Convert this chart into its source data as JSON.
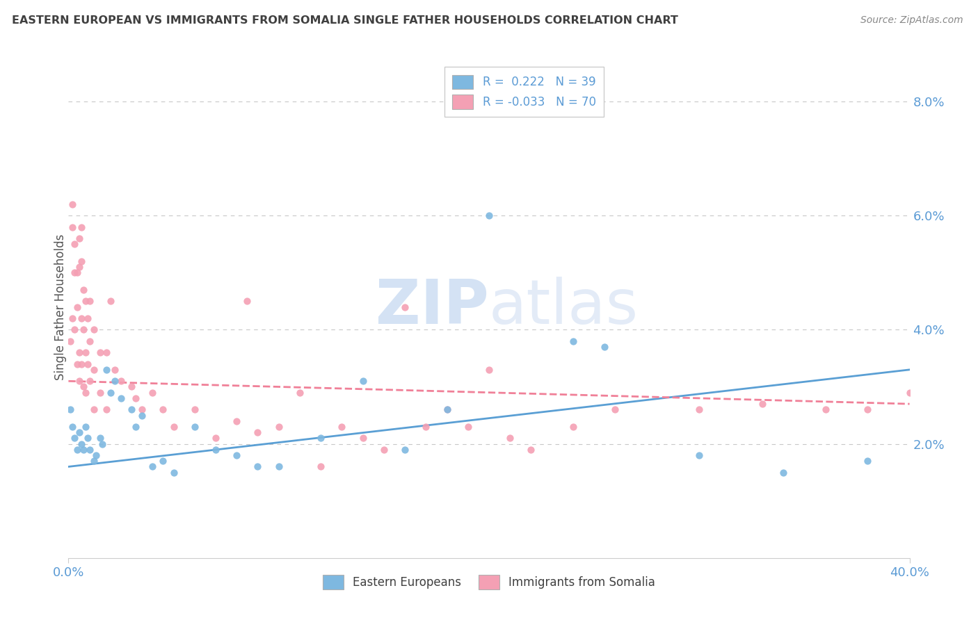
{
  "title": "EASTERN EUROPEAN VS IMMIGRANTS FROM SOMALIA SINGLE FATHER HOUSEHOLDS CORRELATION CHART",
  "source": "Source: ZipAtlas.com",
  "ylabel": "Single Father Households",
  "ytick_labels": [
    "2.0%",
    "4.0%",
    "6.0%",
    "8.0%"
  ],
  "ytick_values": [
    0.02,
    0.04,
    0.06,
    0.08
  ],
  "xlim": [
    0.0,
    0.4
  ],
  "ylim": [
    0.0,
    0.088
  ],
  "legend_line1": "R =  0.222   N = 39",
  "legend_line2": "R = -0.033   N = 70",
  "legend_labels": [
    "Eastern Europeans",
    "Immigrants from Somalia"
  ],
  "blue_color": "#7eb8e0",
  "pink_color": "#f4a0b4",
  "blue_line_color": "#5a9fd4",
  "pink_line_color": "#f08098",
  "watermark": "ZIPatlas",
  "blue_scatter": [
    [
      0.001,
      0.026
    ],
    [
      0.002,
      0.023
    ],
    [
      0.003,
      0.021
    ],
    [
      0.004,
      0.019
    ],
    [
      0.005,
      0.022
    ],
    [
      0.006,
      0.02
    ],
    [
      0.007,
      0.019
    ],
    [
      0.008,
      0.023
    ],
    [
      0.009,
      0.021
    ],
    [
      0.01,
      0.019
    ],
    [
      0.012,
      0.017
    ],
    [
      0.013,
      0.018
    ],
    [
      0.015,
      0.021
    ],
    [
      0.016,
      0.02
    ],
    [
      0.018,
      0.033
    ],
    [
      0.02,
      0.029
    ],
    [
      0.022,
      0.031
    ],
    [
      0.025,
      0.028
    ],
    [
      0.03,
      0.026
    ],
    [
      0.032,
      0.023
    ],
    [
      0.035,
      0.025
    ],
    [
      0.04,
      0.016
    ],
    [
      0.045,
      0.017
    ],
    [
      0.05,
      0.015
    ],
    [
      0.06,
      0.023
    ],
    [
      0.07,
      0.019
    ],
    [
      0.08,
      0.018
    ],
    [
      0.09,
      0.016
    ],
    [
      0.1,
      0.016
    ],
    [
      0.12,
      0.021
    ],
    [
      0.14,
      0.031
    ],
    [
      0.16,
      0.019
    ],
    [
      0.18,
      0.026
    ],
    [
      0.2,
      0.06
    ],
    [
      0.24,
      0.038
    ],
    [
      0.255,
      0.037
    ],
    [
      0.3,
      0.018
    ],
    [
      0.34,
      0.015
    ],
    [
      0.38,
      0.017
    ]
  ],
  "pink_scatter": [
    [
      0.001,
      0.038
    ],
    [
      0.002,
      0.042
    ],
    [
      0.002,
      0.058
    ],
    [
      0.002,
      0.062
    ],
    [
      0.003,
      0.055
    ],
    [
      0.003,
      0.05
    ],
    [
      0.003,
      0.04
    ],
    [
      0.004,
      0.05
    ],
    [
      0.004,
      0.044
    ],
    [
      0.004,
      0.034
    ],
    [
      0.005,
      0.056
    ],
    [
      0.005,
      0.051
    ],
    [
      0.005,
      0.036
    ],
    [
      0.005,
      0.031
    ],
    [
      0.006,
      0.058
    ],
    [
      0.006,
      0.052
    ],
    [
      0.006,
      0.042
    ],
    [
      0.006,
      0.034
    ],
    [
      0.007,
      0.047
    ],
    [
      0.007,
      0.04
    ],
    [
      0.007,
      0.03
    ],
    [
      0.008,
      0.045
    ],
    [
      0.008,
      0.036
    ],
    [
      0.008,
      0.029
    ],
    [
      0.009,
      0.042
    ],
    [
      0.009,
      0.034
    ],
    [
      0.01,
      0.045
    ],
    [
      0.01,
      0.038
    ],
    [
      0.01,
      0.031
    ],
    [
      0.012,
      0.04
    ],
    [
      0.012,
      0.033
    ],
    [
      0.012,
      0.026
    ],
    [
      0.015,
      0.036
    ],
    [
      0.015,
      0.029
    ],
    [
      0.018,
      0.036
    ],
    [
      0.018,
      0.026
    ],
    [
      0.02,
      0.045
    ],
    [
      0.022,
      0.033
    ],
    [
      0.025,
      0.031
    ],
    [
      0.03,
      0.03
    ],
    [
      0.032,
      0.028
    ],
    [
      0.035,
      0.026
    ],
    [
      0.04,
      0.029
    ],
    [
      0.045,
      0.026
    ],
    [
      0.05,
      0.023
    ],
    [
      0.06,
      0.026
    ],
    [
      0.07,
      0.021
    ],
    [
      0.08,
      0.024
    ],
    [
      0.085,
      0.045
    ],
    [
      0.09,
      0.022
    ],
    [
      0.1,
      0.023
    ],
    [
      0.11,
      0.029
    ],
    [
      0.12,
      0.016
    ],
    [
      0.13,
      0.023
    ],
    [
      0.14,
      0.021
    ],
    [
      0.15,
      0.019
    ],
    [
      0.16,
      0.044
    ],
    [
      0.17,
      0.023
    ],
    [
      0.18,
      0.026
    ],
    [
      0.19,
      0.023
    ],
    [
      0.2,
      0.033
    ],
    [
      0.21,
      0.021
    ],
    [
      0.22,
      0.019
    ],
    [
      0.24,
      0.023
    ],
    [
      0.26,
      0.026
    ],
    [
      0.3,
      0.026
    ],
    [
      0.33,
      0.027
    ],
    [
      0.36,
      0.026
    ],
    [
      0.38,
      0.026
    ],
    [
      0.4,
      0.029
    ]
  ],
  "blue_line_x": [
    0.0,
    0.4
  ],
  "blue_line_y": [
    0.016,
    0.033
  ],
  "pink_line_x": [
    0.0,
    0.4
  ],
  "pink_line_y": [
    0.031,
    0.027
  ],
  "background_color": "#ffffff",
  "grid_color": "#c8c8c8",
  "title_color": "#404040",
  "tick_color": "#5b9bd5",
  "source_color": "#888888",
  "rvalue_color": "#5b9bd5",
  "legend_text_color": "#404040"
}
